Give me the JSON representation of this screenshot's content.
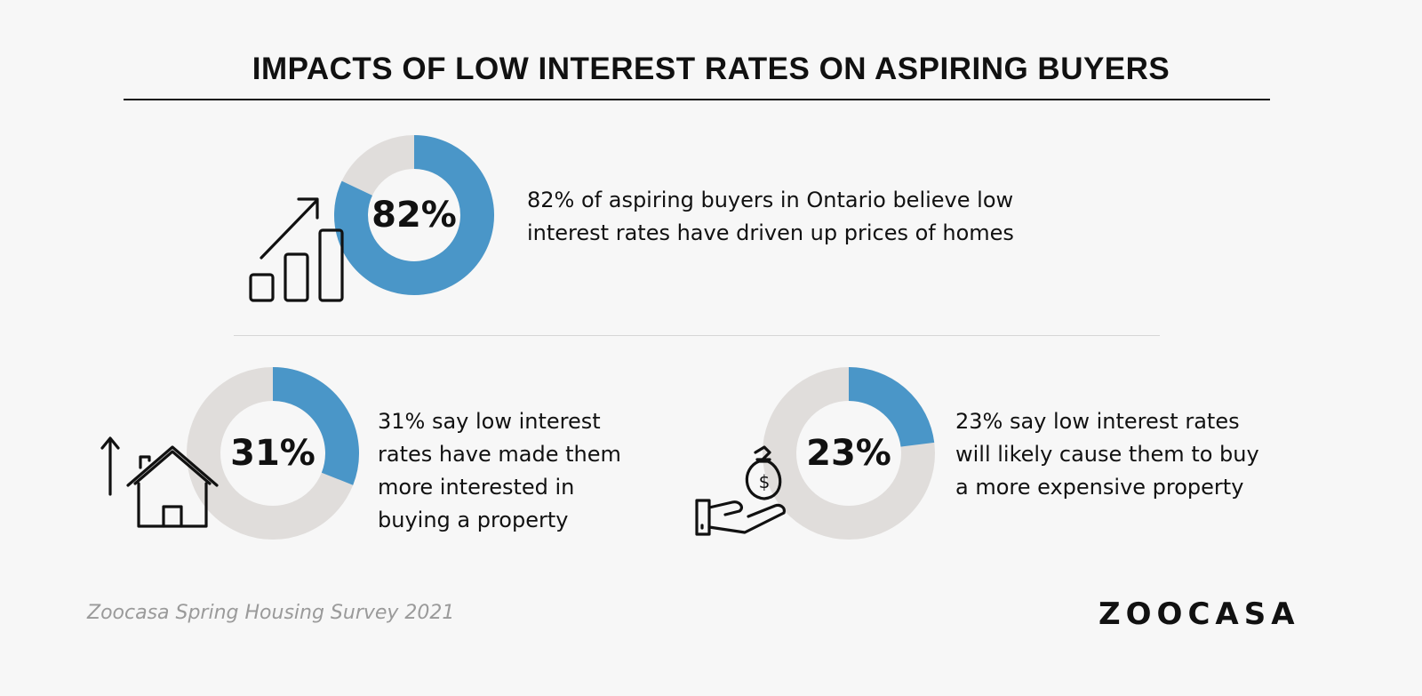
{
  "title": "IMPACTS OF LOW INTEREST RATES ON ASPIRING BUYERS",
  "colors": {
    "accent": "#4a96c8",
    "remainder": "#e0dddb",
    "background": "#f7f7f7",
    "text": "#111111",
    "source_text": "#9a9a9a"
  },
  "chart_data": [
    {
      "type": "pie",
      "style": "donut",
      "label": "82%",
      "values": [
        82,
        18
      ],
      "description": "82% of aspiring buyers in Ontario believe low interest rates have driven up prices of homes",
      "description_lines": [
        "82% of aspiring buyers in Ontario believe low",
        "interest rates have driven up prices of homes"
      ],
      "icon": "bar-chart-growth-icon"
    },
    {
      "type": "pie",
      "style": "donut",
      "label": "31%",
      "values": [
        31,
        69
      ],
      "description": "31% say low interest rates have made them more interested in buying a property",
      "description_lines": [
        "31% say low interest",
        "rates have made them",
        "more interested in",
        "buying a property"
      ],
      "icon": "house-up-arrow-icon"
    },
    {
      "type": "pie",
      "style": "donut",
      "label": "23%",
      "values": [
        23,
        77
      ],
      "description": "23% say low interest rates will likely cause them to buy a more expensive property",
      "description_lines": [
        "23% say low interest rates",
        "will likely cause them to buy",
        "a more expensive property"
      ],
      "icon": "money-bag-hand-icon"
    }
  ],
  "footer": {
    "source": "Zoocasa Spring Housing Survey 2021",
    "brand": "ZOOCASA"
  }
}
